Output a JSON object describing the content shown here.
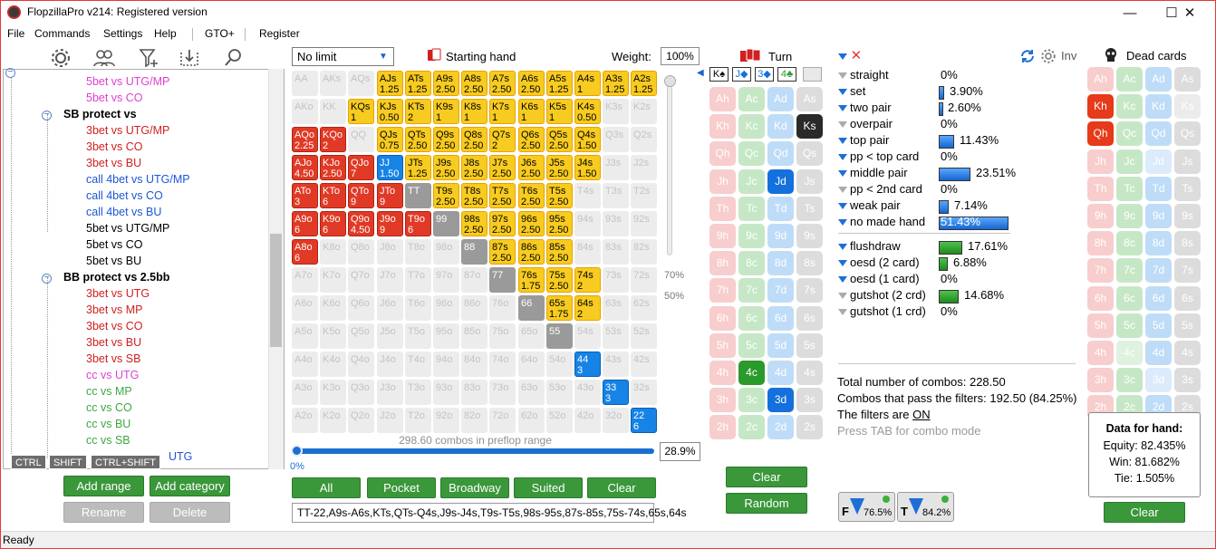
{
  "window": {
    "title": "FlopzillaPro v214: Registered version",
    "minimize": "—",
    "maximize": "☐",
    "close": "✕"
  },
  "menu": [
    "File",
    "Commands",
    "Settings",
    "Help",
    "|",
    "GTO+",
    "|",
    "Register"
  ],
  "tree": {
    "rows": [
      {
        "text": "5bet vs UTG/MP",
        "color": "#e040d0",
        "indent": 95,
        "y": 83
      },
      {
        "text": "5bet vs CO",
        "color": "#e040d0",
        "indent": 95,
        "y": 101
      },
      {
        "text": "SB protect vs",
        "color": "#000",
        "indent": 70,
        "y": 119,
        "cat": true
      },
      {
        "text": "3bet vs UTG/MP",
        "color": "#d02020",
        "indent": 95,
        "y": 137
      },
      {
        "text": "3bet vs CO",
        "color": "#d02020",
        "indent": 95,
        "y": 155
      },
      {
        "text": "3bet vs BU",
        "color": "#d02020",
        "indent": 95,
        "y": 173
      },
      {
        "text": "call 4bet vs UTG/MP",
        "color": "#1d55d8",
        "indent": 95,
        "y": 191
      },
      {
        "text": "call 4bet vs CO",
        "color": "#1d55d8",
        "indent": 95,
        "y": 209
      },
      {
        "text": "call 4bet vs BU",
        "color": "#1d55d8",
        "indent": 95,
        "y": 227
      },
      {
        "text": "5bet vs UTG/MP",
        "color": "#000",
        "indent": 95,
        "y": 245
      },
      {
        "text": "5bet vs CO",
        "color": "#000",
        "indent": 95,
        "y": 263
      },
      {
        "text": "5bet vs BU",
        "color": "#000",
        "indent": 95,
        "y": 281
      },
      {
        "text": "BB protect vs 2.5bb",
        "color": "#000",
        "indent": 70,
        "y": 299,
        "cat": true
      },
      {
        "text": "3bet vs UTG",
        "color": "#d02020",
        "indent": 95,
        "y": 317
      },
      {
        "text": "3bet vs MP",
        "color": "#d02020",
        "indent": 95,
        "y": 335
      },
      {
        "text": "3bet vs CO",
        "color": "#d02020",
        "indent": 95,
        "y": 353
      },
      {
        "text": "3bet vs BU",
        "color": "#d02020",
        "indent": 95,
        "y": 371
      },
      {
        "text": "3bet vs SB",
        "color": "#d02020",
        "indent": 95,
        "y": 389
      },
      {
        "text": "cc vs UTG",
        "color": "#e040d0",
        "indent": 95,
        "y": 407
      },
      {
        "text": "cc vs MP",
        "color": "#3fa83f",
        "indent": 95,
        "y": 425
      },
      {
        "text": "cc vs CO",
        "color": "#3fa83f",
        "indent": 95,
        "y": 443
      },
      {
        "text": "cc vs BU",
        "color": "#3fa83f",
        "indent": 95,
        "y": 461
      },
      {
        "text": "cc vs SB",
        "color": "#3fa83f",
        "indent": 95,
        "y": 479
      },
      {
        "text": "UTG",
        "color": "#1d55d8",
        "indent": 186,
        "y": 497
      }
    ],
    "modkeys": [
      "CTRL",
      "SHIFT",
      "CTRL+SHIFT"
    ]
  },
  "tree_buttons": {
    "add_range": "Add range",
    "add_category": "Add category",
    "rename": "Rename",
    "delete": "Delete"
  },
  "range": {
    "game": "No limit",
    "starting_hand": "Starting hand",
    "weight_label": "Weight:",
    "weight": "100%",
    "slider_70": "70%",
    "slider_50": "50%",
    "combos_text": "298.60 combos in preflop range",
    "range_pct": "28.9%",
    "slider_pos": "0%",
    "range_string": "TT-22,A9s-A6s,KTs,QTs-Q4s,J9s-J4s,T9s-T5s,98s-95s,87s-85s,75s-74s,65s,64s",
    "buttons": [
      "All",
      "Pocket",
      "Broadway",
      "Suited",
      "Clear"
    ],
    "grid": [
      [
        "AA|0",
        "AKs|0",
        "AQs|0",
        "AJs|1|1.25",
        "ATs|1|1.25",
        "A9s|1|2.50",
        "A8s|1|2.50",
        "A7s|1|2.50",
        "A6s|1|2.50",
        "A5s|1|1.25",
        "A4s|1|1",
        "A3s|1|1.25",
        "A2s|1|1.25"
      ],
      [
        "AKo|0",
        "KK|0",
        "KQs|1|1",
        "KJs|1|0.50",
        "KTs|1|2",
        "K9s|1|1",
        "K8s|1|1",
        "K7s|1|1",
        "K6s|1|1",
        "K5s|1|1",
        "K4s|1|0.50",
        "K3s|0",
        "K2s|0"
      ],
      [
        "AQo|2|2.25",
        "KQo|2|2",
        "QQ|0",
        "QJs|1|0.75",
        "QTs|1|2.50",
        "Q9s|1|2.50",
        "Q8s|1|2.50",
        "Q7s|1|2",
        "Q6s|1|2.50",
        "Q5s|1|2.50",
        "Q4s|1|1.50",
        "Q3s|0",
        "Q2s|0"
      ],
      [
        "AJo|2|4.50",
        "KJo|2|2.50",
        "QJo|2|7",
        "JJ|3|1.50",
        "JTs|1|1.25",
        "J9s|1|2.50",
        "J8s|1|2.50",
        "J7s|1|2.50",
        "J6s|1|2.50",
        "J5s|1|2.50",
        "J4s|1|1.50",
        "J3s|0",
        "J2s|0"
      ],
      [
        "ATo|2|3",
        "KTo|2|6",
        "QTo|2|9",
        "JTo|2|9",
        "TT|4",
        "T9s|1|2.50",
        "T8s|1|2.50",
        "T7s|1|2.50",
        "T6s|1|2.50",
        "T5s|1|2.50",
        "T4s|0",
        "T3s|0",
        "T2s|0"
      ],
      [
        "A9o|2|6",
        "K9o|2|6",
        "Q9o|2|4.50",
        "J9o|2|9",
        "T9o|2|6",
        "99|4",
        "98s|1|2.50",
        "97s|1|2.50",
        "96s|1|2.50",
        "95s|1|2.50",
        "94s|0",
        "93s|0",
        "92s|0"
      ],
      [
        "A8o|2|6",
        "K8o|0",
        "Q8o|0",
        "J8o|0",
        "T8o|0",
        "98o|0",
        "88|4",
        "87s|1|2.50",
        "86s|1|2.50",
        "85s|1|2.50",
        "84s|0",
        "83s|0",
        "82s|0"
      ],
      [
        "A7o|0",
        "K7o|0",
        "Q7o|0",
        "J7o|0",
        "T7o|0",
        "97o|0",
        "87o|0",
        "77|4",
        "76s|1|1.75",
        "75s|1|2.50",
        "74s|1|2",
        "73s|0",
        "72s|0"
      ],
      [
        "A6o|0",
        "K6o|0",
        "Q6o|0",
        "J6o|0",
        "T6o|0",
        "96o|0",
        "86o|0",
        "76o|0",
        "66|4",
        "65s|1|1.75",
        "64s|1|2",
        "63s|0",
        "62s|0"
      ],
      [
        "A5o|0",
        "K5o|0",
        "Q5o|0",
        "J5o|0",
        "T5o|0",
        "95o|0",
        "85o|0",
        "75o|0",
        "65o|0",
        "55|4",
        "54s|0",
        "53s|0",
        "52s|0"
      ],
      [
        "A4o|0",
        "K4o|0",
        "Q4o|0",
        "J4o|0",
        "T4o|0",
        "94o|0",
        "84o|0",
        "74o|0",
        "64o|0",
        "54o|0",
        "44|3|3",
        "43s|0",
        "42s|0"
      ],
      [
        "A3o|0",
        "K3o|0",
        "Q3o|0",
        "J3o|0",
        "T3o|0",
        "93o|0",
        "83o|0",
        "73o|0",
        "63o|0",
        "53o|0",
        "43o|0",
        "33|3|3",
        "32s|0"
      ],
      [
        "A2o|0",
        "K2o|0",
        "Q2o|0",
        "J2o|0",
        "T2o|0",
        "92o|0",
        "82o|0",
        "72o|0",
        "62o|0",
        "52o|0",
        "42o|0",
        "32o|0",
        "22|3|6"
      ]
    ]
  },
  "board": {
    "turn_label": "Turn",
    "selected": [
      "K♠",
      "J◆",
      "3◆",
      "4♣"
    ],
    "ranks": [
      "A",
      "K",
      "Q",
      "J",
      "T",
      "9",
      "8",
      "7",
      "6",
      "5",
      "4",
      "3",
      "2"
    ],
    "suits": [
      "h",
      "c",
      "d",
      "s"
    ],
    "selected_cards": [
      "Ks",
      "Jd",
      "3d",
      "4c"
    ],
    "dead_cards": [
      "Kh",
      "Qh"
    ],
    "clear": "Clear",
    "random": "Random"
  },
  "stats": {
    "inv": "Inv",
    "rows": [
      {
        "label": "straight",
        "pct": "0%",
        "val": 0,
        "kind": "blue",
        "on": false,
        "y": 75
      },
      {
        "label": "set",
        "pct": "3.90%",
        "val": 3.9,
        "kind": "blue",
        "on": true,
        "y": 93
      },
      {
        "label": "two pair",
        "pct": "2.60%",
        "val": 2.6,
        "kind": "blue",
        "on": true,
        "y": 111
      },
      {
        "label": "overpair",
        "pct": "0%",
        "val": 0,
        "kind": "blue",
        "on": false,
        "y": 129
      },
      {
        "label": "top pair",
        "pct": "11.43%",
        "val": 11.43,
        "kind": "blue",
        "on": true,
        "y": 147
      },
      {
        "label": "pp < top card",
        "pct": "0%",
        "val": 0,
        "kind": "blue",
        "on": true,
        "y": 165
      },
      {
        "label": "middle pair",
        "pct": "23.51%",
        "val": 23.51,
        "kind": "blue",
        "on": true,
        "y": 183
      },
      {
        "label": "pp < 2nd card",
        "pct": "0%",
        "val": 0,
        "kind": "blue",
        "on": false,
        "y": 201
      },
      {
        "label": "weak pair",
        "pct": "7.14%",
        "val": 7.14,
        "kind": "blue",
        "on": true,
        "y": 219
      },
      {
        "label": "no made hand",
        "pct": "51.43%",
        "val": 51.43,
        "kind": "blue",
        "on": true,
        "y": 237
      },
      {
        "label": "flushdraw",
        "pct": "17.61%",
        "val": 17.61,
        "kind": "green",
        "on": true,
        "y": 264
      },
      {
        "label": "oesd (2 card)",
        "pct": "6.88%",
        "val": 6.88,
        "kind": "green",
        "on": true,
        "y": 282
      },
      {
        "label": "oesd (1 card)",
        "pct": "0%",
        "val": 0,
        "kind": "green",
        "on": true,
        "y": 300
      },
      {
        "label": "gutshot (2 crd)",
        "pct": "14.68%",
        "val": 14.68,
        "kind": "green",
        "on": false,
        "y": 318
      },
      {
        "label": "gutshot (1 crd)",
        "pct": "0%",
        "val": 0,
        "kind": "green",
        "on": false,
        "y": 336
      }
    ],
    "total": "Total number of combos: 228.50",
    "pass": "Combos that pass the filters: 192.50 (84.25%)",
    "filters_pre": "The filters are ",
    "filters_on": "ON",
    "press_tab": "Press TAB for combo mode",
    "f1_pct": "76.5%",
    "f2_pct": "84.2%"
  },
  "dead": {
    "label": "Dead cards",
    "data_title": "Data for hand:",
    "equity": "Equity: 82.435%",
    "win": "Win: 81.682%",
    "tie": "Tie: 1.505%",
    "clear": "Clear"
  },
  "status": "Ready"
}
